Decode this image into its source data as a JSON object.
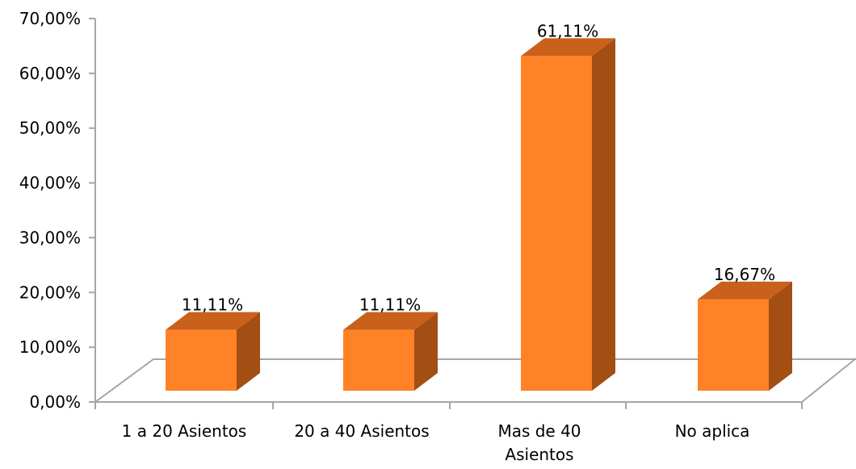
{
  "chart_data": {
    "type": "bar",
    "style": "3d-column",
    "categories": [
      [
        "1 a 20 Asientos"
      ],
      [
        "20 a 40 Asientos"
      ],
      [
        "Mas de 40",
        "Asientos"
      ],
      [
        "No aplica"
      ]
    ],
    "values": [
      11.11,
      11.11,
      61.11,
      16.67
    ],
    "data_labels": [
      "11,11%",
      "11,11%",
      "61,11%",
      "16,67%"
    ],
    "y_ticks": [
      "0,00%",
      "10,00%",
      "20,00%",
      "30,00%",
      "40,00%",
      "50,00%",
      "60,00%",
      "70,00%"
    ],
    "ylim": [
      0,
      70
    ],
    "grid": false,
    "legend": "none",
    "colors": {
      "front": "#FF8226",
      "top": "#C9601C",
      "side": "#A34E13",
      "axis": "#A6A6A6"
    }
  }
}
